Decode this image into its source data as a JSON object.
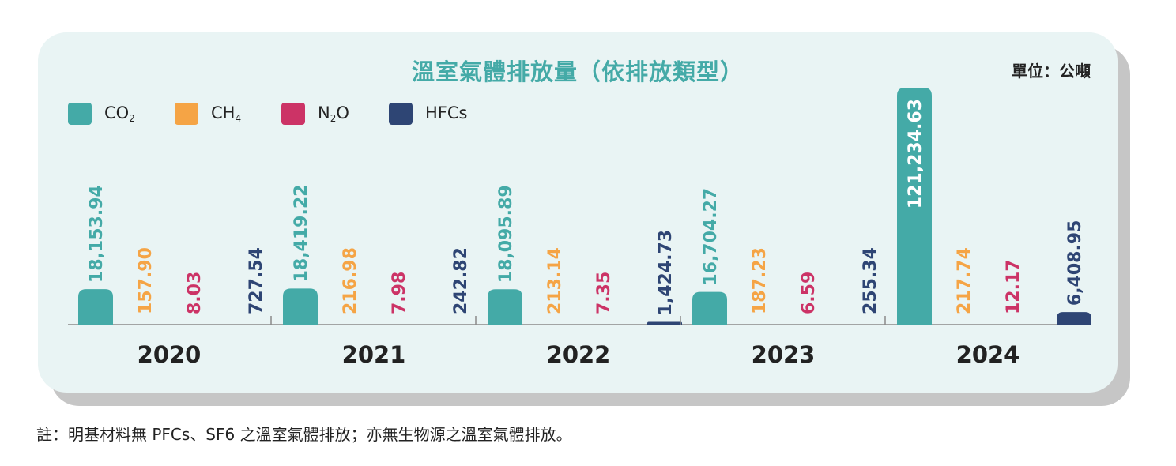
{
  "title": "溫室氣體排放量（依排放類型）",
  "unit": "單位：公噸",
  "legend": [
    {
      "label": "CO",
      "sub": "2",
      "color": "#44aaa7"
    },
    {
      "label": "CH",
      "sub": "4",
      "color": "#f5a445"
    },
    {
      "label": "N",
      "sub": "2",
      "tail": "O",
      "color": "#cc3366"
    },
    {
      "label": "HFCs",
      "sub": "",
      "color": "#2e4574"
    }
  ],
  "note": "註：明基材料無 PFCs、SF6 之溫室氣體排放；亦無生物源之溫室氣體排放。",
  "chart_data": {
    "type": "bar",
    "categories": [
      "2020",
      "2021",
      "2022",
      "2023",
      "2024"
    ],
    "series": [
      {
        "name": "CO2",
        "color": "#44aaa7",
        "values": [
          18153.94,
          18419.22,
          18095.89,
          16704.27,
          121234.63
        ],
        "labels": [
          "18,153.94",
          "18,419.22",
          "18,095.89",
          "16,704.27",
          "121,234.63"
        ]
      },
      {
        "name": "CH4",
        "color": "#f5a445",
        "values": [
          157.9,
          216.98,
          213.14,
          187.23,
          217.74
        ],
        "labels": [
          "157.90",
          "216.98",
          "213.14",
          "187.23",
          "217.74"
        ]
      },
      {
        "name": "N2O",
        "color": "#cc3366",
        "values": [
          8.03,
          7.98,
          7.35,
          6.59,
          12.17
        ],
        "labels": [
          "8.03",
          "7.98",
          "7.35",
          "6.59",
          "12.17"
        ]
      },
      {
        "name": "HFCs",
        "color": "#2e4574",
        "values": [
          727.54,
          242.82,
          1424.73,
          255.34,
          6408.95
        ],
        "labels": [
          "727.54",
          "242.82",
          "1,424.73",
          "255.34",
          "6,408.95"
        ]
      }
    ],
    "ylim": [
      0,
      121234.63
    ],
    "grid": false,
    "legend_position": "top-left"
  }
}
